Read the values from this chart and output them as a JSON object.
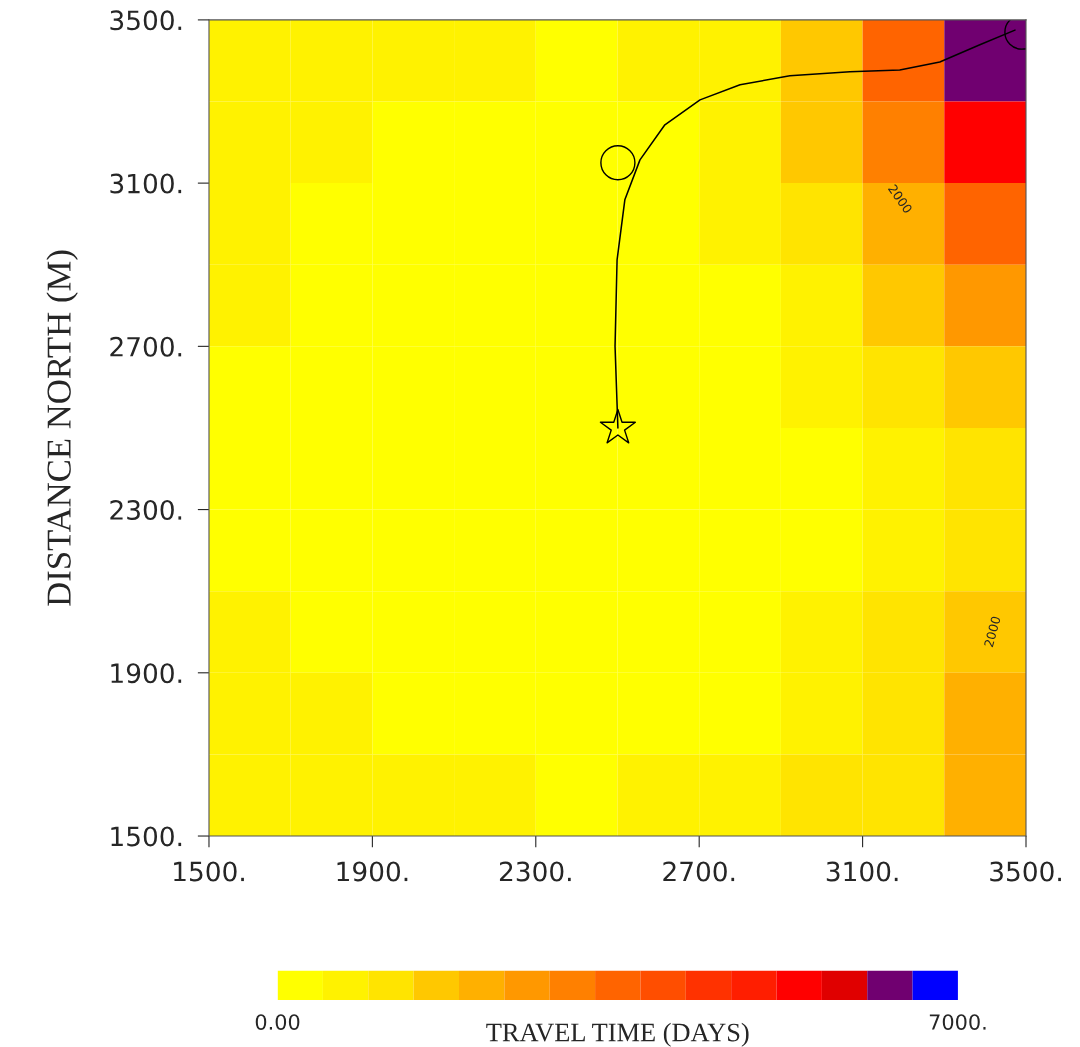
{
  "chart_data": {
    "type": "heatmap",
    "ylabel": "DISTANCE NORTH (M)",
    "clabel": "TRAVEL TIME (DAYS)",
    "x": [
      1600,
      1800,
      2000,
      2200,
      2400,
      2600,
      2800,
      3000,
      3200,
      3400
    ],
    "y": [
      3400,
      3200,
      3000,
      2800,
      2600,
      2400,
      2200,
      2000,
      1800,
      1600
    ],
    "cells": [
      [
        840,
        690,
        580,
        500,
        450,
        480,
        810,
        1660,
        3500,
        6200
      ],
      [
        720,
        550,
        450,
        380,
        340,
        380,
        610,
        1420,
        2900,
        5200
      ],
      [
        590,
        430,
        340,
        290,
        260,
        280,
        470,
        1030,
        2040,
        3600
      ],
      [
        480,
        360,
        290,
        240,
        210,
        230,
        360,
        710,
        1480,
        2680
      ],
      [
        410,
        320,
        260,
        210,
        190,
        210,
        290,
        500,
        960,
        1810
      ],
      [
        390,
        300,
        250,
        210,
        190,
        190,
        250,
        360,
        640,
        1210
      ],
      [
        430,
        330,
        260,
        220,
        200,
        210,
        260,
        410,
        740,
        1300
      ],
      [
        530,
        390,
        310,
        250,
        230,
        250,
        320,
        530,
        970,
        1700
      ],
      [
        700,
        520,
        400,
        340,
        300,
        330,
        450,
        710,
        1170,
        2000
      ],
      [
        870,
        680,
        560,
        480,
        450,
        530,
        710,
        980,
        1380,
        2090
      ]
    ],
    "colors": [
      "#ffff00",
      "#fff200",
      "#ffe400",
      "#ffc800",
      "#ffb000",
      "#ff9800",
      "#ff8000",
      "#ff6400",
      "#ff4e00",
      "#ff3200",
      "#ff1e00",
      "#ff0000",
      "#e00000",
      "#700070",
      "#0000ff"
    ],
    "clim": [
      0,
      7000
    ],
    "cticks": [
      {
        "value": 0,
        "label": "0.00"
      },
      {
        "value": 7000,
        "label": "7000."
      }
    ],
    "xlim": [
      1500,
      3500
    ],
    "ylim": [
      1500,
      3500
    ],
    "xticks": [
      {
        "value": 1500,
        "label": "1500."
      },
      {
        "value": 1900,
        "label": "1900."
      },
      {
        "value": 2300,
        "label": "2300."
      },
      {
        "value": 2700,
        "label": "2700."
      },
      {
        "value": 3100,
        "label": "3100."
      },
      {
        "value": 3500,
        "label": "3500."
      }
    ],
    "yticks": [
      {
        "value": 1500,
        "label": "1500."
      },
      {
        "value": 1900,
        "label": "1900."
      },
      {
        "value": 2300,
        "label": "2300."
      },
      {
        "value": 2700,
        "label": "2700."
      },
      {
        "value": 3100,
        "label": "3100."
      },
      {
        "value": 3500,
        "label": "3500."
      }
    ],
    "grid": false,
    "series": [
      {
        "type": "line",
        "color": "#000000",
        "x": [
          2501,
          2494,
          2499,
          2518,
          2555,
          2616,
          2702,
          2800,
          2922,
          3069,
          3191,
          3289,
          3387,
          3473
        ],
        "values": [
          2500,
          2700,
          2912,
          3059,
          3157,
          3243,
          3304,
          3341,
          3363,
          3373,
          3377,
          3397,
          3439,
          3475
        ]
      },
      {
        "type": "scatter",
        "marker": "circle",
        "color": "#000000",
        "x": [
          2501
        ],
        "values": [
          3150
        ]
      },
      {
        "type": "scatter",
        "marker": "star",
        "color": "#000000",
        "x": [
          2501
        ],
        "values": [
          2500
        ]
      },
      {
        "type": "scatter",
        "marker": "circle",
        "color": "#000000",
        "x": [
          3490
        ],
        "values": [
          3470
        ]
      }
    ],
    "annotations": [
      "2000",
      "2000"
    ]
  }
}
